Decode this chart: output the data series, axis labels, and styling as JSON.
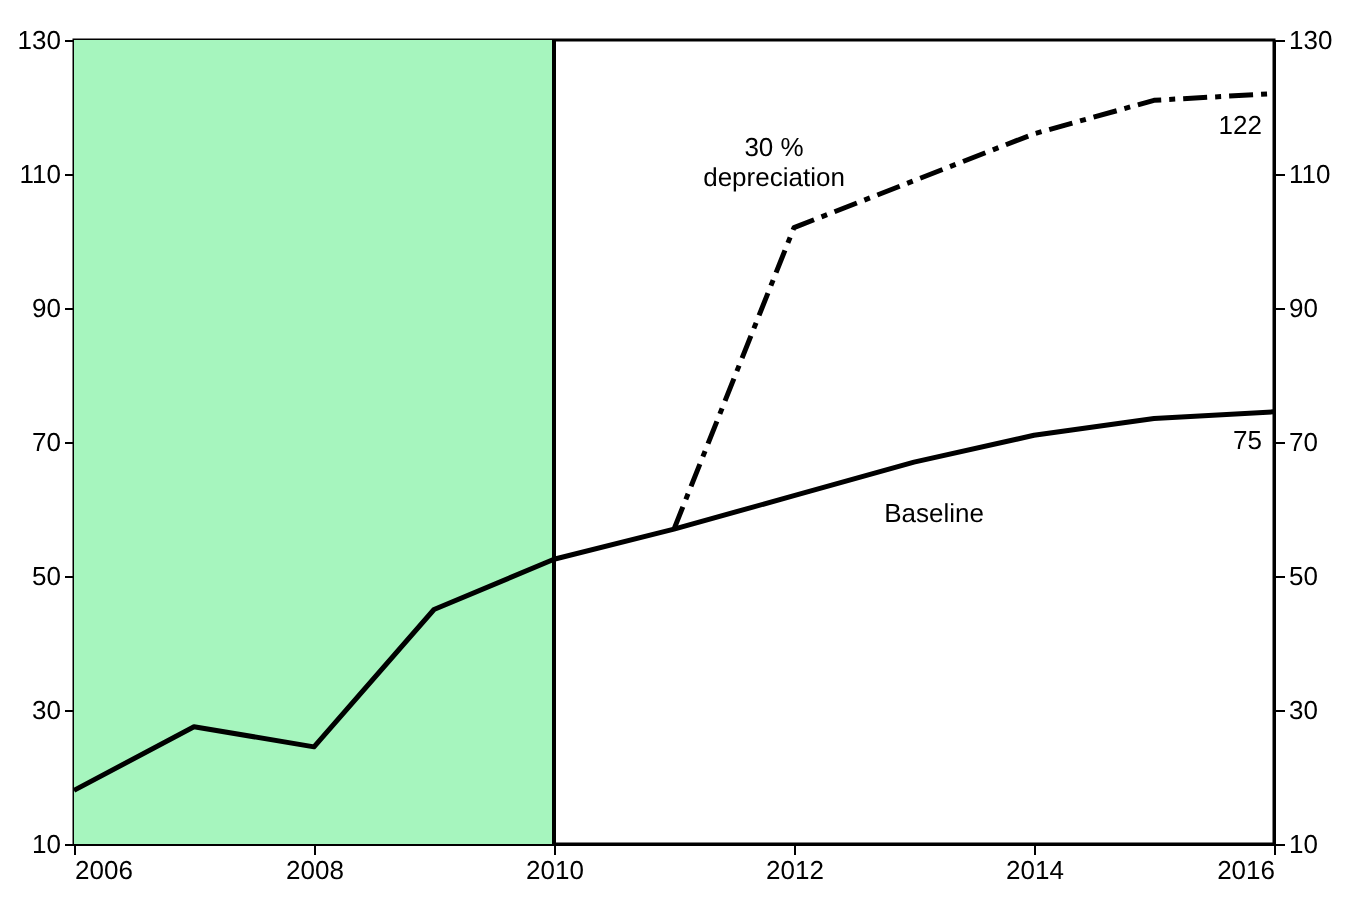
{
  "chart_data": {
    "type": "line",
    "x": [
      2006,
      2007,
      2008,
      2009,
      2010,
      2011,
      2012,
      2013,
      2014,
      2015,
      2016
    ],
    "series": [
      {
        "name": "Baseline",
        "color": "#000000",
        "line_style": "solid",
        "values": [
          18,
          27.5,
          24.5,
          45,
          52.5,
          57,
          62,
          67,
          71,
          73.5,
          74.5
        ]
      },
      {
        "name": "30 % depreciation",
        "color": "#000000",
        "line_style": "dashed",
        "x": [
          2011,
          2012,
          2013,
          2014,
          2015,
          2016
        ],
        "values": [
          57,
          102,
          109,
          116,
          121,
          122
        ]
      }
    ],
    "xlim": [
      2006,
      2016
    ],
    "xticks": [
      2006,
      2008,
      2010,
      2012,
      2014,
      2016
    ],
    "ylim": [
      10,
      130
    ],
    "yticks": [
      10,
      30,
      50,
      70,
      90,
      110,
      130
    ],
    "y2lim": [
      10,
      130
    ],
    "y2ticks": [
      10,
      30,
      50,
      70,
      90,
      110,
      130
    ],
    "bands": [
      {
        "axis": "x",
        "from": 2006,
        "to": 2010,
        "color": "#a6f5be"
      }
    ],
    "ref_lines": [
      {
        "axis": "x",
        "value": 2010,
        "color": "#000000"
      }
    ],
    "annotations": [
      {
        "text": "122",
        "x": 2016,
        "y": 122
      },
      {
        "text": "75",
        "x": 2016,
        "y": 75
      }
    ],
    "grid": false,
    "marker": "none"
  }
}
